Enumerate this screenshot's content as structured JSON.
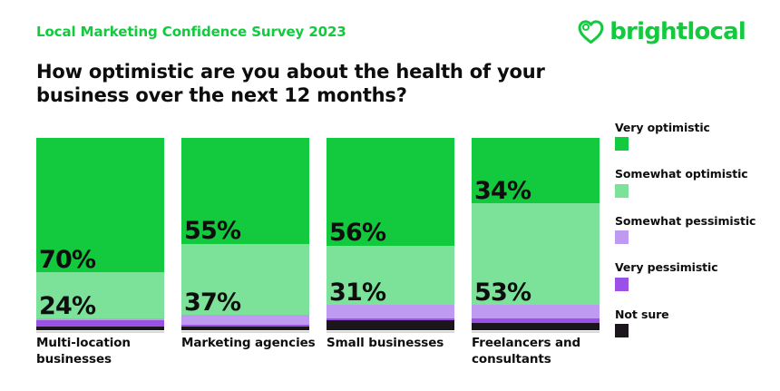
{
  "header": {
    "survey_label": "Local Marketing Confidence Survey 2023",
    "brand": "brightlocal"
  },
  "question": "How optimistic are you about the health of your business over the next 12 months?",
  "colors": {
    "brand_green": "#13c93e",
    "light_green": "#7ce299",
    "light_purple": "#be9af0",
    "dark_purple": "#9b51e6",
    "near_black": "#1a161b",
    "text_dark": "#0e0e0e",
    "axis_gray": "#d8d8d8"
  },
  "legend": [
    {
      "label": "Very optimistic",
      "color": "#13c93e"
    },
    {
      "label": "Somewhat optimistic",
      "color": "#7ce299"
    },
    {
      "label": "Somewhat pessimistic",
      "color": "#be9af0"
    },
    {
      "label": "Very pessimistic",
      "color": "#9b51e6"
    },
    {
      "label": "Not sure",
      "color": "#1a161b"
    }
  ],
  "chart_data": {
    "type": "bar",
    "stacked": true,
    "orientation": "vertical",
    "unit": "%",
    "ylim": [
      0,
      100
    ],
    "grid": false,
    "legend_position": "right",
    "title": "How optimistic are you about the health of your business over the next 12 months?",
    "categories": [
      "Multi-location businesses",
      "Marketing agencies",
      "Small businesses",
      "Freelancers and consultants"
    ],
    "series": [
      {
        "name": "Very optimistic",
        "color": "#13c93e",
        "labeled": true,
        "values": [
          70,
          55,
          56,
          34
        ]
      },
      {
        "name": "Somewhat optimistic",
        "color": "#7ce299",
        "labeled": true,
        "values": [
          24,
          37,
          31,
          53
        ]
      },
      {
        "name": "Somewhat pessimistic",
        "color": "#be9af0",
        "labeled": false,
        "values": [
          1,
          5,
          7,
          7
        ]
      },
      {
        "name": "Very pessimistic",
        "color": "#9b51e6",
        "labeled": false,
        "values": [
          3,
          1,
          1,
          2
        ]
      },
      {
        "name": "Not sure",
        "color": "#1a161b",
        "labeled": false,
        "values": [
          2,
          2,
          5,
          4
        ]
      }
    ],
    "visible_value_labels": [
      "70%",
      "24%",
      "55%",
      "37%",
      "56%",
      "31%",
      "34%",
      "53%"
    ]
  }
}
